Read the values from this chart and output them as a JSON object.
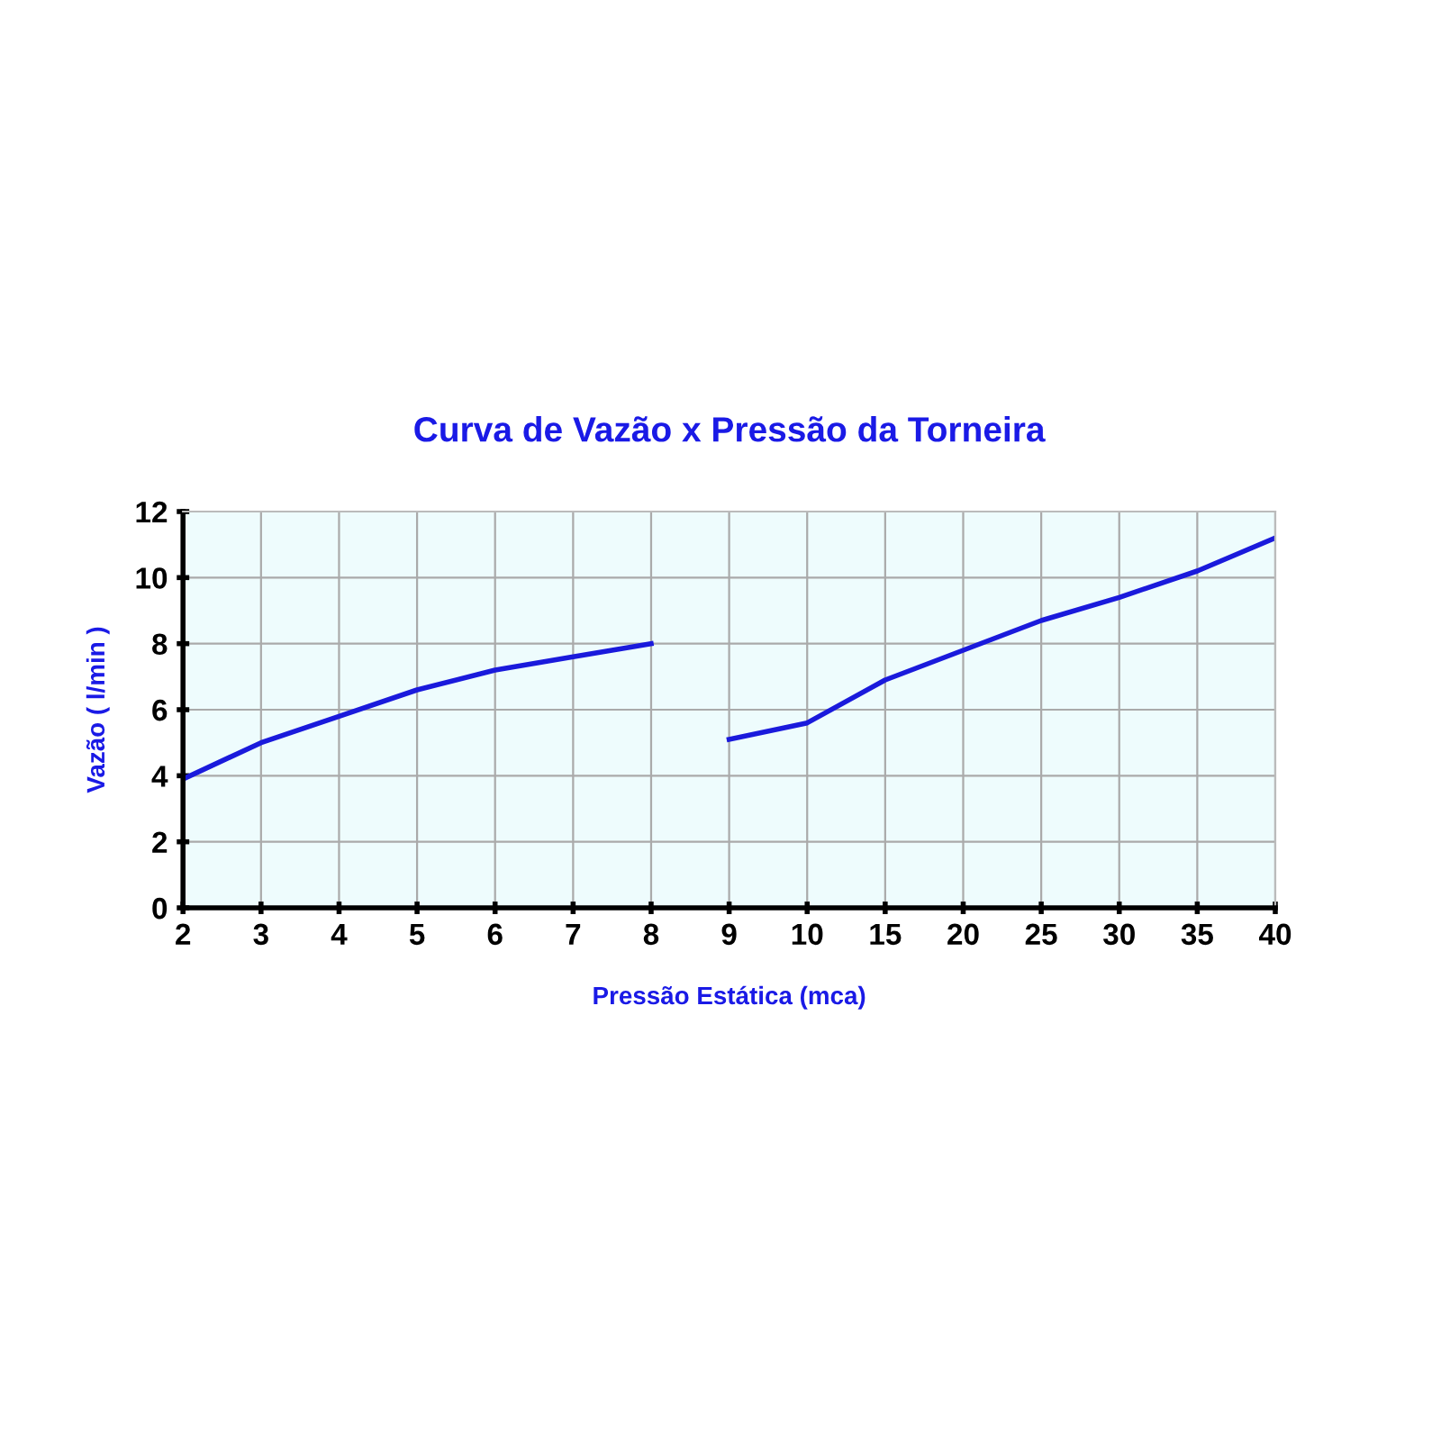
{
  "chart_data": {
    "type": "line",
    "title": "Curva de Vazão x Pressão da Torneira",
    "xlabel": "Pressão Estática (mca)",
    "ylabel": "Vazão ( l/min )",
    "categories": [
      "2",
      "3",
      "4",
      "5",
      "6",
      "7",
      "8",
      "9",
      "10",
      "15",
      "20",
      "25",
      "30",
      "35",
      "40"
    ],
    "series": [
      {
        "color": "#1a1adc",
        "values": [
          3.9,
          5.0,
          5.8,
          6.6,
          7.2,
          7.6,
          8.0,
          null,
          null,
          null,
          null,
          null,
          null,
          null,
          null
        ]
      },
      {
        "color": "#1a1adc",
        "values": [
          null,
          null,
          null,
          null,
          null,
          null,
          null,
          5.1,
          5.6,
          6.9,
          7.8,
          8.7,
          9.4,
          10.2,
          11.2
        ]
      }
    ],
    "ylim": [
      0,
      12
    ],
    "yticks": [
      0,
      2,
      4,
      6,
      8,
      10,
      12
    ],
    "grid": true,
    "marker": "none",
    "line_style": "solid"
  }
}
